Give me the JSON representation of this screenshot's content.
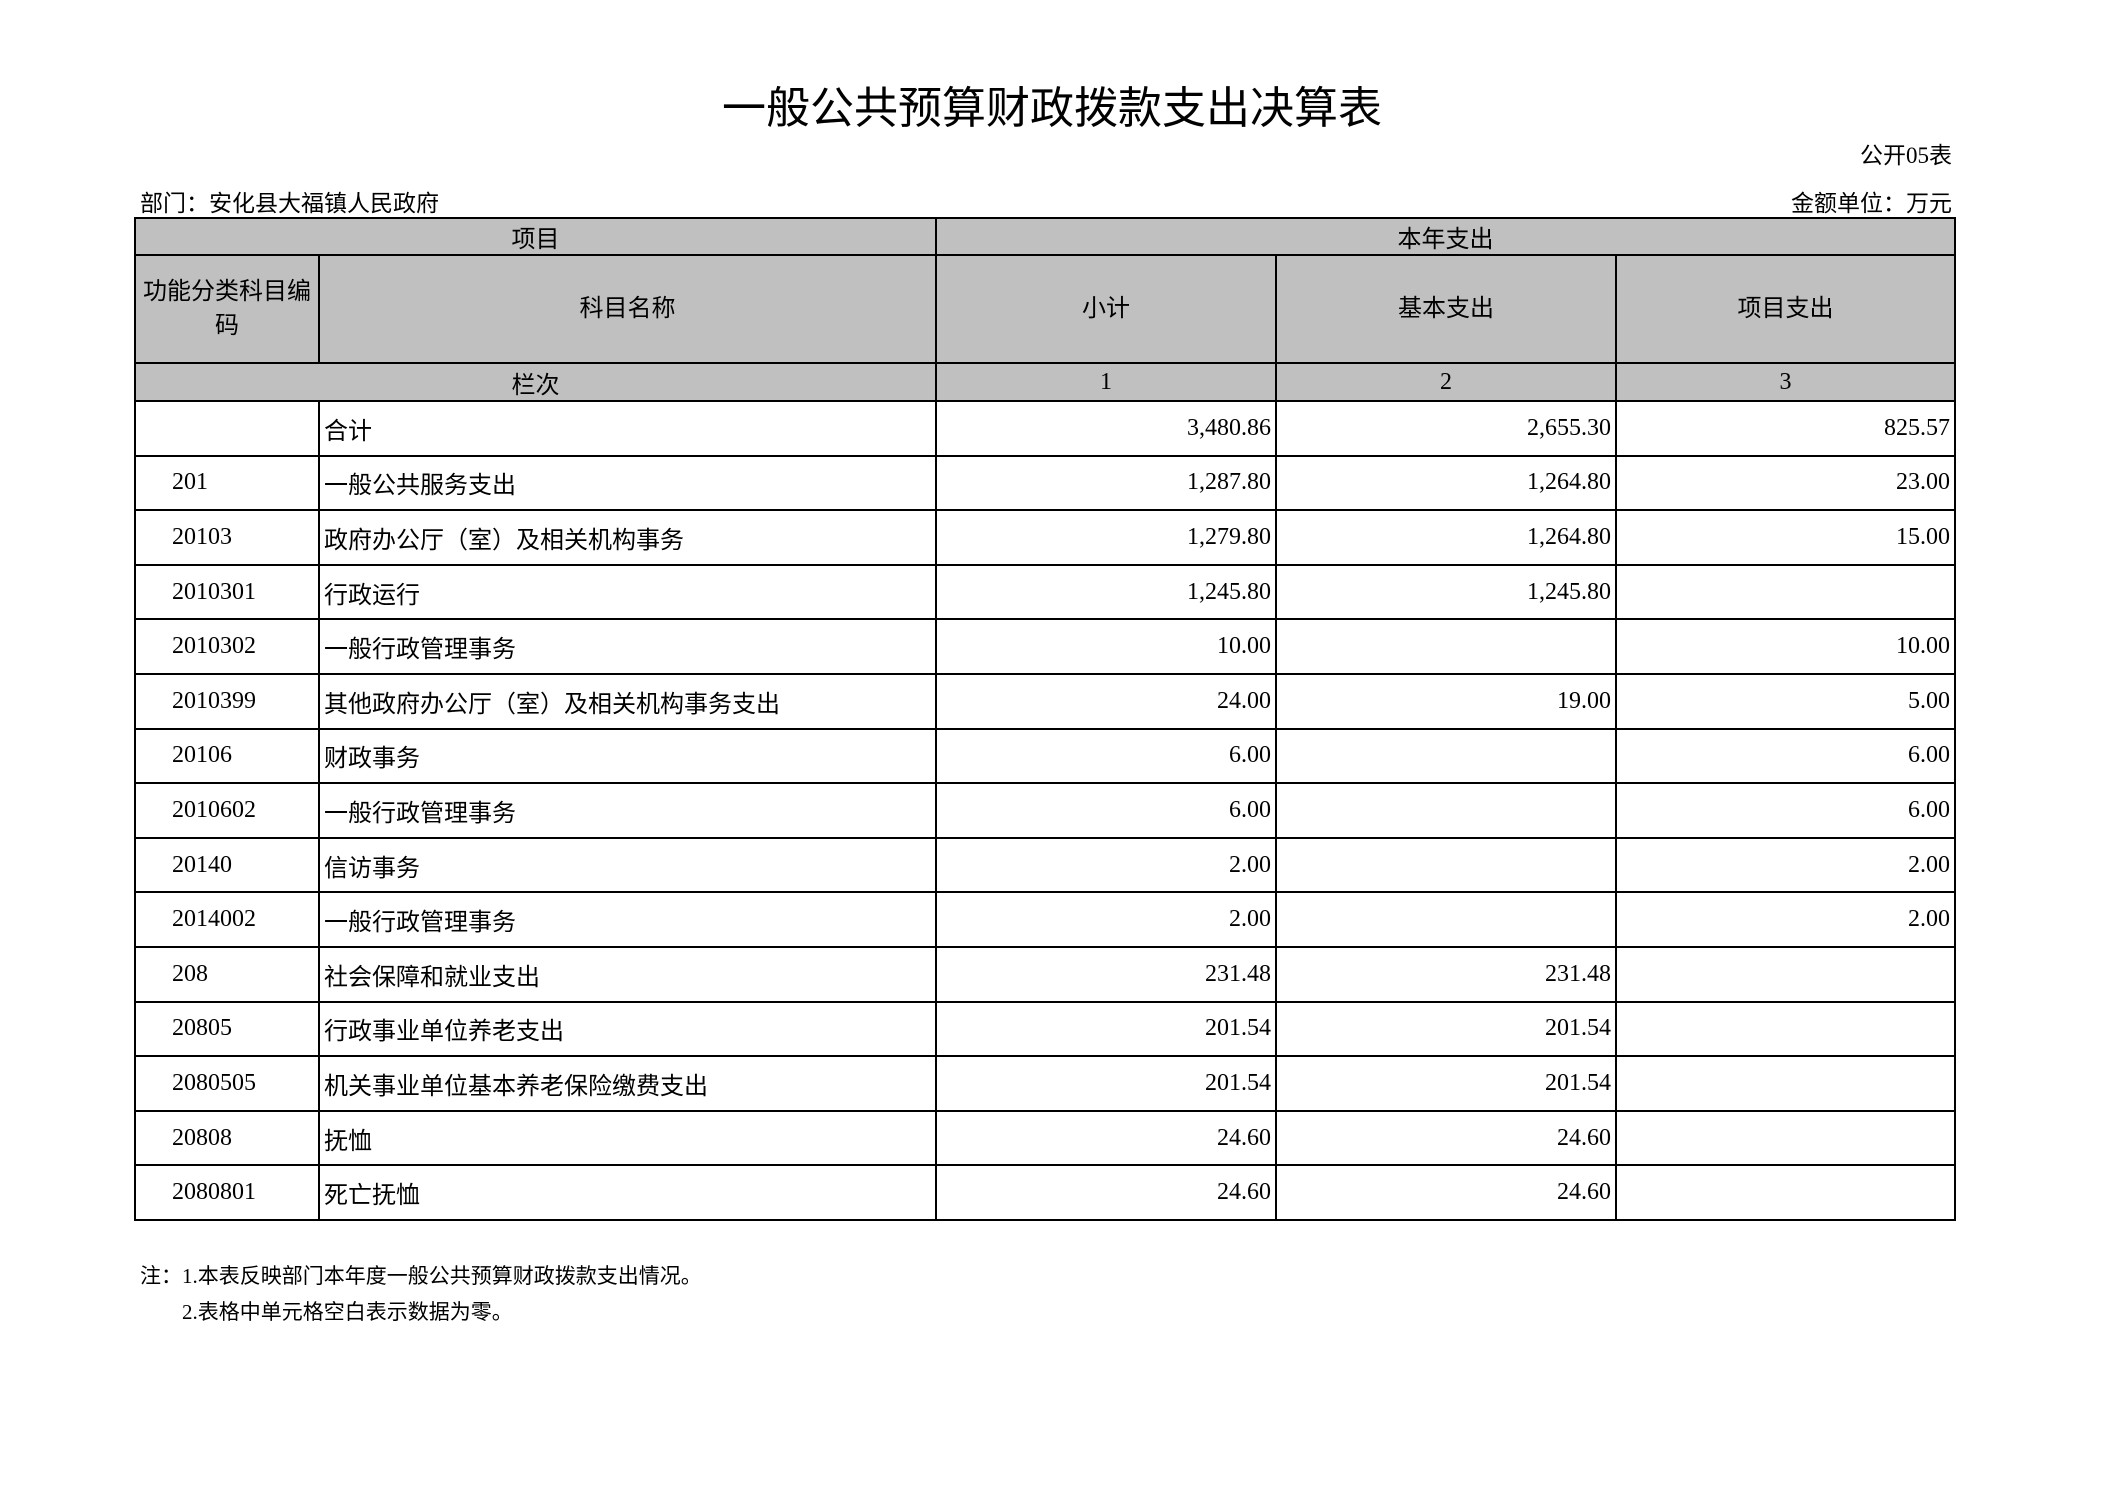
{
  "title": "一般公共预算财政拨款支出决算表",
  "table_code": "公开05表",
  "department": "部门：安化县大福镇人民政府",
  "unit": "金额单位：万元",
  "header": {
    "item": "项目",
    "current_year": "本年支出",
    "code": "功能分类科目编码",
    "name": "科目名称",
    "subtotal": "小计",
    "basic": "基本支出",
    "project": "项目支出",
    "column_index": "栏次",
    "col1": "1",
    "col2": "2",
    "col3": "3"
  },
  "rows": [
    {
      "code": "",
      "name": "合计",
      "subtotal": "3,480.86",
      "basic": "2,655.30",
      "project": "825.57"
    },
    {
      "code": "201",
      "name": "一般公共服务支出",
      "subtotal": "1,287.80",
      "basic": "1,264.80",
      "project": "23.00"
    },
    {
      "code": "20103",
      "name": "政府办公厅（室）及相关机构事务",
      "subtotal": "1,279.80",
      "basic": "1,264.80",
      "project": "15.00"
    },
    {
      "code": "2010301",
      "name": "行政运行",
      "subtotal": "1,245.80",
      "basic": "1,245.80",
      "project": ""
    },
    {
      "code": "2010302",
      "name": "一般行政管理事务",
      "subtotal": "10.00",
      "basic": "",
      "project": "10.00"
    },
    {
      "code": "2010399",
      "name": "其他政府办公厅（室）及相关机构事务支出",
      "subtotal": "24.00",
      "basic": "19.00",
      "project": "5.00"
    },
    {
      "code": "20106",
      "name": "财政事务",
      "subtotal": "6.00",
      "basic": "",
      "project": "6.00"
    },
    {
      "code": "2010602",
      "name": "一般行政管理事务",
      "subtotal": "6.00",
      "basic": "",
      "project": "6.00"
    },
    {
      "code": "20140",
      "name": "信访事务",
      "subtotal": "2.00",
      "basic": "",
      "project": "2.00"
    },
    {
      "code": "2014002",
      "name": "一般行政管理事务",
      "subtotal": "2.00",
      "basic": "",
      "project": "2.00"
    },
    {
      "code": "208",
      "name": "社会保障和就业支出",
      "subtotal": "231.48",
      "basic": "231.48",
      "project": ""
    },
    {
      "code": "20805",
      "name": "行政事业单位养老支出",
      "subtotal": "201.54",
      "basic": "201.54",
      "project": ""
    },
    {
      "code": "2080505",
      "name": "机关事业单位基本养老保险缴费支出",
      "subtotal": "201.54",
      "basic": "201.54",
      "project": ""
    },
    {
      "code": "20808",
      "name": "抚恤",
      "subtotal": "24.60",
      "basic": "24.60",
      "project": ""
    },
    {
      "code": "2080801",
      "name": "死亡抚恤",
      "subtotal": "24.60",
      "basic": "24.60",
      "project": ""
    }
  ],
  "notes": [
    "注：1.本表反映部门本年度一般公共预算财政拨款支出情况。",
    "2.表格中单元格空白表示数据为零。"
  ]
}
